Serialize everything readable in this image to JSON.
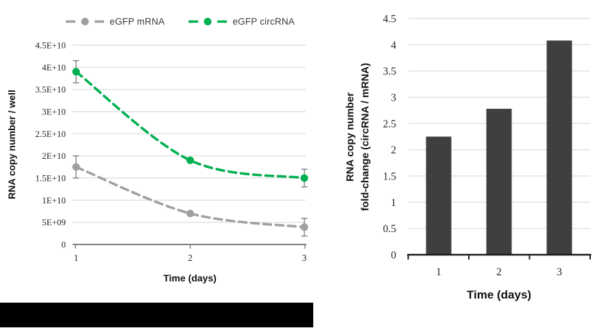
{
  "figure": {
    "background": "#ffffff",
    "redaction_bar_color": "#000000"
  },
  "chart_data": [
    {
      "type": "line",
      "title": "",
      "xlabel": "Time (days)",
      "ylabel": "RNA copy number / well",
      "x": [
        1,
        2,
        3
      ],
      "xtick_labels": [
        "1",
        "2",
        "3"
      ],
      "ylim": [
        0,
        45000000000.0
      ],
      "ytick_step": 5000000000.0,
      "ytick_labels": [
        "0",
        "5E+09",
        "1E+10",
        "1.5E+10",
        "2E+10",
        "2.5E+10",
        "3E+10",
        "3.5E+10",
        "4E+10",
        "4.5E+10"
      ],
      "grid": true,
      "legend_position": "top",
      "line_style": "dashed-with-circle-markers",
      "series": [
        {
          "name": "eGFP mRNA",
          "color": "#A0A0A0",
          "values": [
            17500000000.0,
            7000000000.0,
            3900000000.0
          ],
          "errors": [
            2500000000.0,
            0,
            2000000000.0
          ]
        },
        {
          "name": "eGFP circRNA",
          "color": "#00B050",
          "values": [
            39000000000.0,
            19000000000.0,
            15000000000.0
          ],
          "errors": [
            2500000000.0,
            0,
            2000000000.0
          ]
        }
      ],
      "style": {
        "gridline": "#D9D9D9",
        "axis": "#808080",
        "tick_text": "#262626",
        "error_bar": "#757575"
      }
    },
    {
      "type": "bar",
      "title": "",
      "xlabel": "Time (days)",
      "ylabel_lines": [
        "RNA copy number",
        "fold-change (circRNA / mRNA)"
      ],
      "categories": [
        "1",
        "2",
        "3"
      ],
      "values": [
        2.25,
        2.78,
        4.08
      ],
      "ylim": [
        0,
        4.5
      ],
      "ytick_step": 0.5,
      "ytick_labels": [
        "0",
        "0.5",
        "1",
        "1.5",
        "2",
        "2.5",
        "3",
        "3.5",
        "4",
        "4.5"
      ],
      "grid": true,
      "bar_color": "#3F3F3F",
      "style": {
        "gridline": "#D9D9D9",
        "axis": "#1A1A1A",
        "tick_text": "#262626"
      }
    }
  ]
}
